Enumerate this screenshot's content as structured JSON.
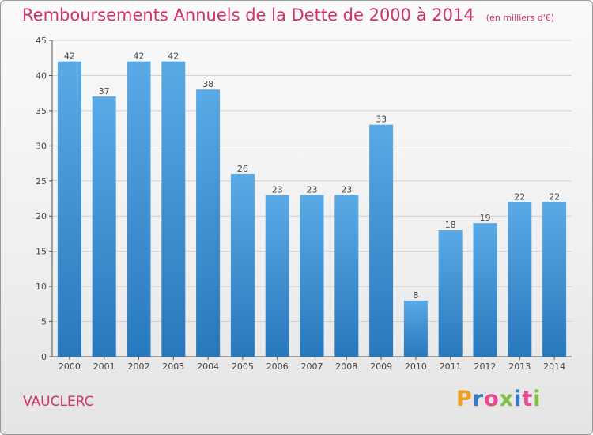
{
  "chart_data": {
    "type": "bar",
    "title": "Remboursements Annuels de la Dette de 2000 à 2014",
    "subtitle": "(en milliers d'€)",
    "categories": [
      "2000",
      "2001",
      "2002",
      "2003",
      "2004",
      "2005",
      "2006",
      "2007",
      "2008",
      "2009",
      "2010",
      "2011",
      "2012",
      "2013",
      "2014"
    ],
    "values": [
      42,
      37,
      42,
      42,
      38,
      26,
      23,
      23,
      23,
      33,
      8,
      18,
      19,
      22,
      22
    ],
    "ylim": [
      0,
      45
    ],
    "yticks": [
      0,
      5,
      10,
      15,
      20,
      25,
      30,
      35,
      40,
      45
    ],
    "grid": true,
    "xlabel": "",
    "ylabel": "",
    "bar_color_top": "#5aaae6",
    "bar_color_bottom": "#2878bd"
  },
  "place_name": "VAUCLERC",
  "logo": {
    "letters": [
      "P",
      "r",
      "o",
      "x",
      "i",
      "t",
      "i"
    ],
    "colors": [
      "#f0a020",
      "#3a78c8",
      "#e84a90",
      "#80c040",
      "#3a78c8",
      "#e84a90",
      "#80c040"
    ]
  },
  "colors": {
    "title": "#d0306e",
    "place": "#d0306e",
    "grid": "#cfcfcf"
  }
}
